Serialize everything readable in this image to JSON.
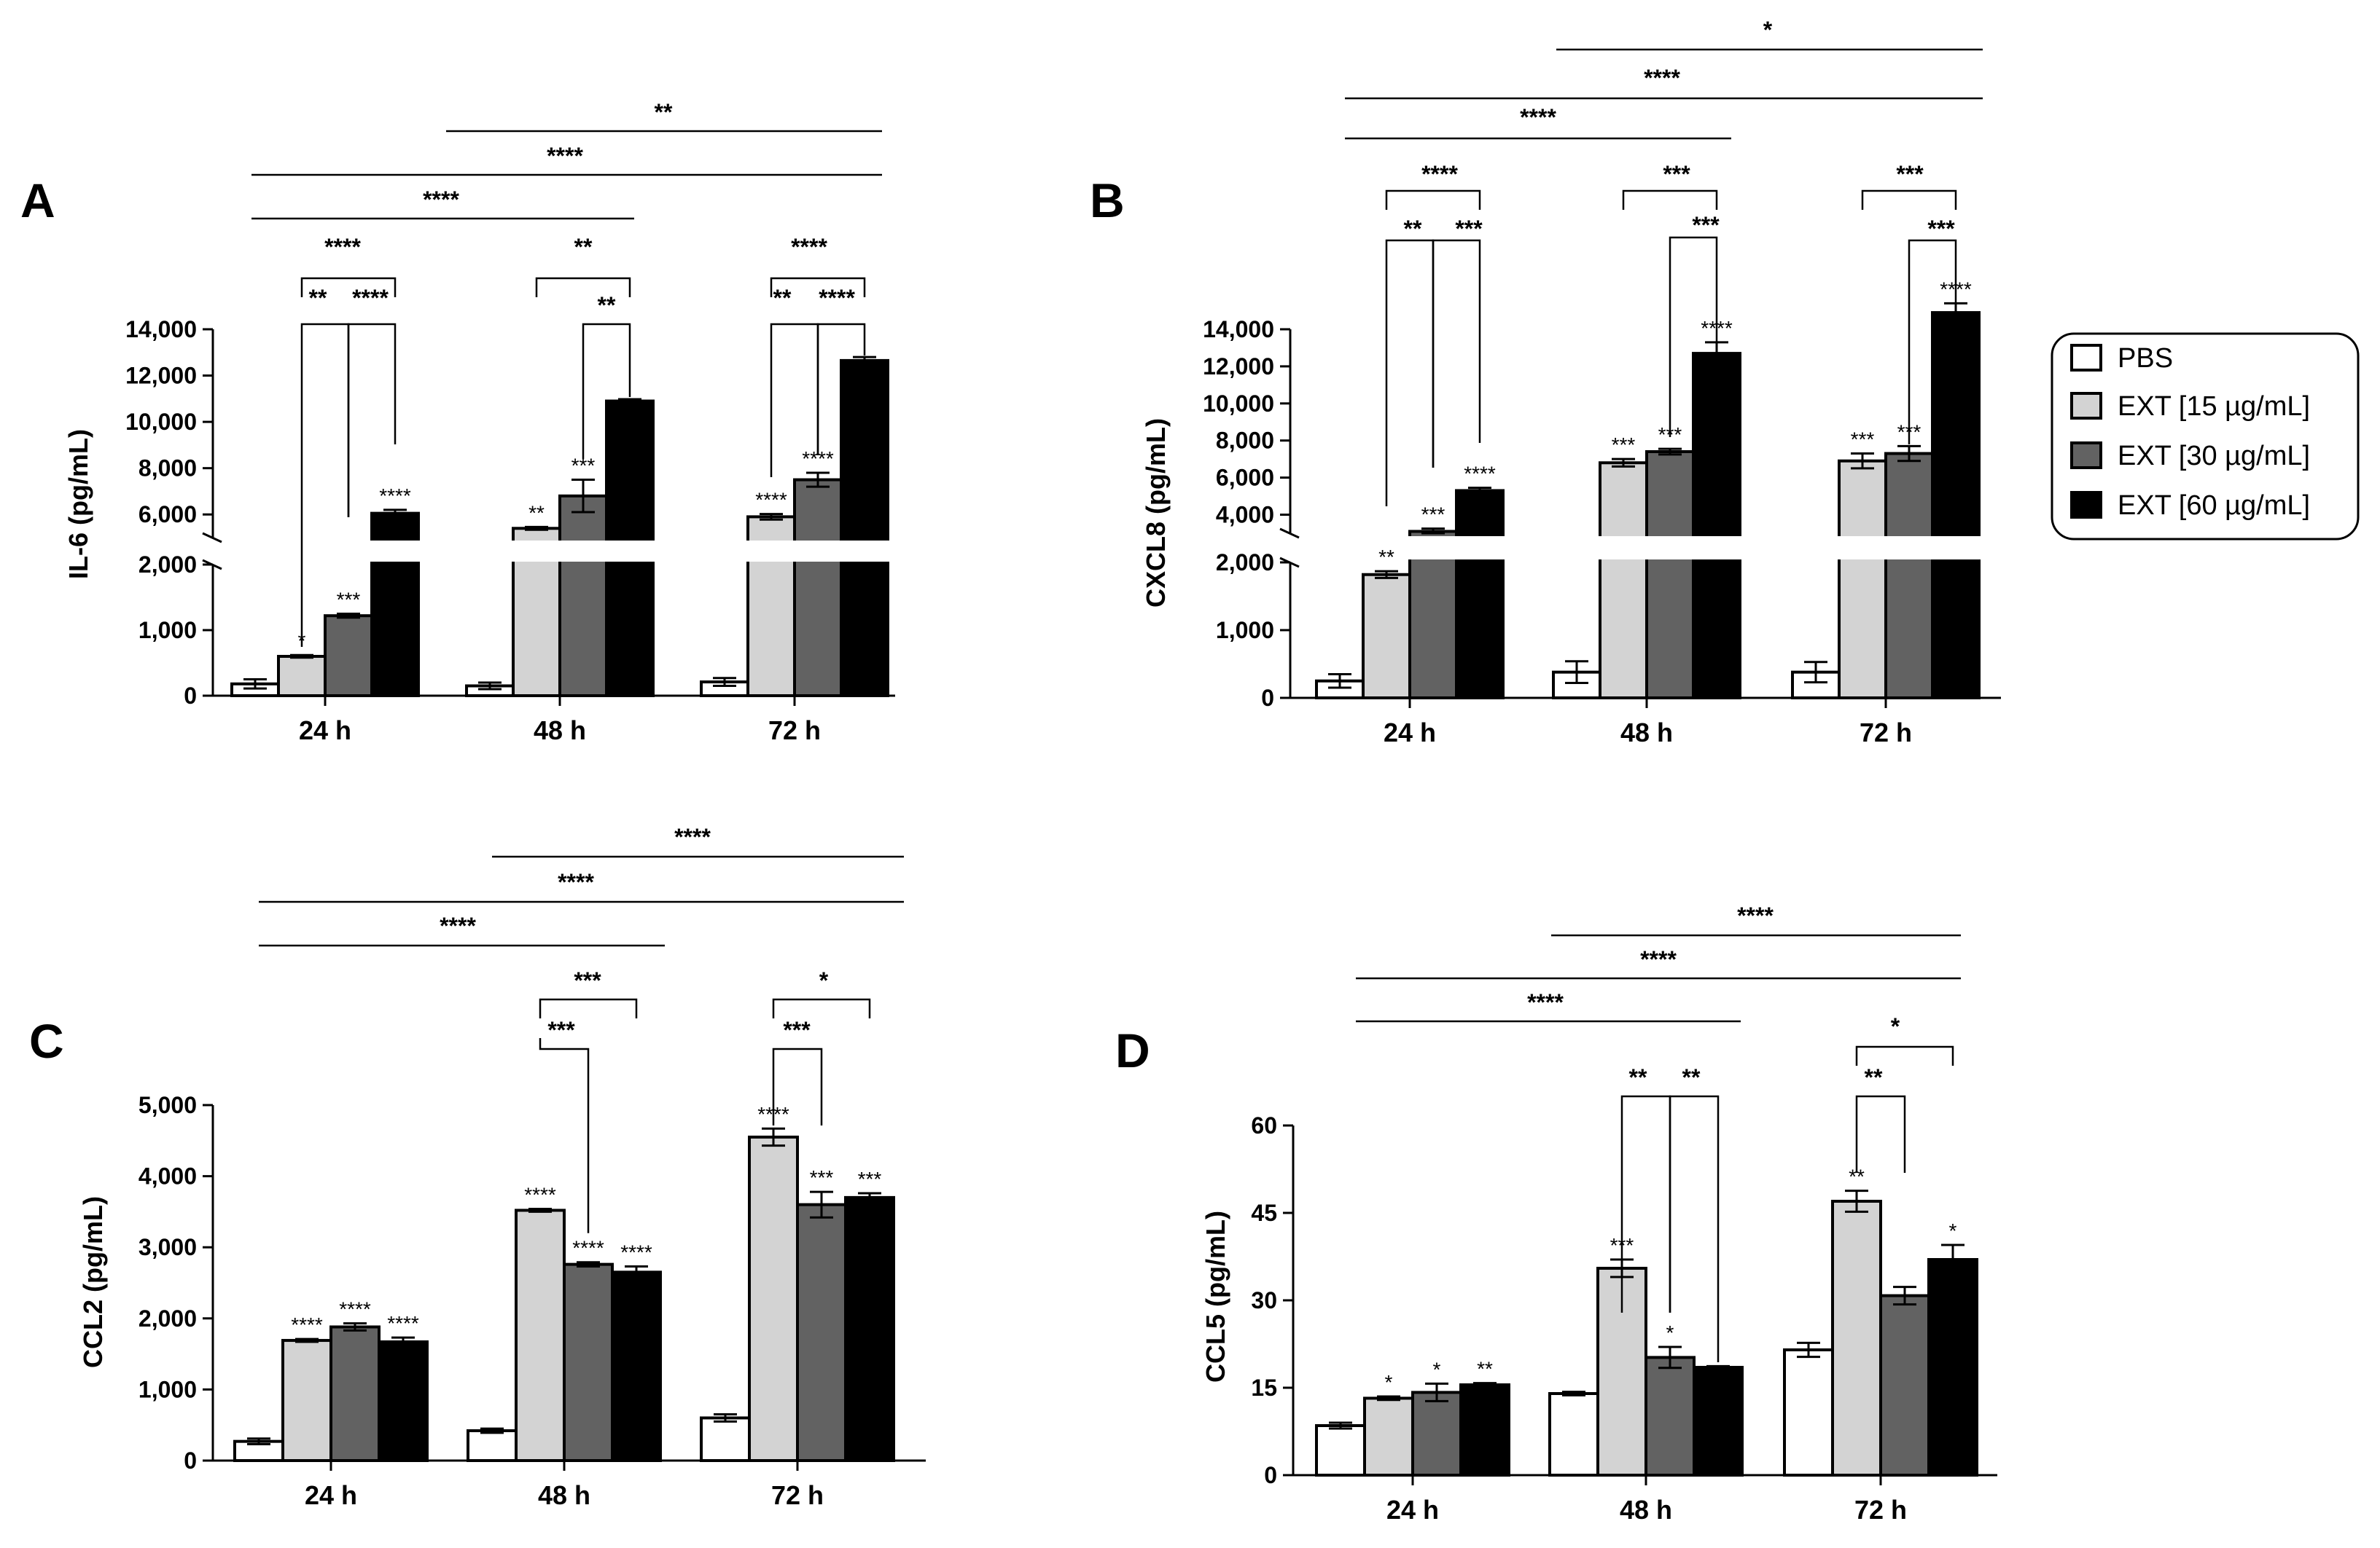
{
  "legend": {
    "items": [
      {
        "label": "PBS",
        "color": "#ffffff"
      },
      {
        "label": "EXT [15 µg/mL]",
        "color": "#d3d3d3"
      },
      {
        "label": "EXT [30 µg/mL]",
        "color": "#626262"
      },
      {
        "label": "EXT [60 µg/mL]",
        "color": "#000000"
      }
    ]
  },
  "chart_data": [
    {
      "panel": "A",
      "type": "bar",
      "ylabel": "IL-6 (pg/mL)",
      "categories": [
        "24 h",
        "48 h",
        "72 h"
      ],
      "axis_break": {
        "lower": [
          0,
          2000
        ],
        "upper": [
          5000,
          14000
        ]
      },
      "yticks_lower": [
        "0",
        "1,000",
        "2,000"
      ],
      "yticks_upper": [
        "6,000",
        "8,000",
        "10,000",
        "12,000",
        "14,000"
      ],
      "series": [
        {
          "name": "PBS",
          "values": [
            180,
            150,
            210
          ],
          "errors": [
            70,
            50,
            60
          ],
          "stars": [
            "",
            "",
            ""
          ]
        },
        {
          "name": "EXT [15 µg/mL]",
          "values": [
            600,
            5400,
            5900
          ],
          "errors": [
            20,
            60,
            120
          ],
          "stars": [
            "*",
            "**",
            "****"
          ]
        },
        {
          "name": "EXT [30 µg/mL]",
          "values": [
            1220,
            6800,
            7500
          ],
          "errors": [
            30,
            700,
            300
          ],
          "stars": [
            "***",
            "***",
            "****"
          ]
        },
        {
          "name": "EXT [60 µg/mL]",
          "values": [
            6050,
            10900,
            12650
          ],
          "errors": [
            150,
            80,
            150
          ],
          "stars": [
            "****",
            "",
            ""
          ]
        }
      ],
      "comparisons": {
        "local": [
          "**",
          "****",
          "****",
          "**",
          "**",
          "**",
          "****",
          "****"
        ],
        "global": [
          "****",
          "****",
          "**"
        ]
      }
    },
    {
      "panel": "B",
      "type": "bar",
      "ylabel": "CXCL8 (pg/mL)",
      "categories": [
        "24 h",
        "48 h",
        "72 h"
      ],
      "axis_break": {
        "lower": [
          0,
          2000
        ],
        "upper": [
          3000,
          14000
        ]
      },
      "yticks_lower": [
        "0",
        "1,000",
        "2,000"
      ],
      "yticks_upper": [
        "4,000",
        "6,000",
        "8,000",
        "10,000",
        "12,000",
        "14,000"
      ],
      "series": [
        {
          "name": "PBS",
          "values": [
            250,
            380,
            380
          ],
          "errors": [
            100,
            160,
            150
          ],
          "stars": [
            "",
            "",
            ""
          ]
        },
        {
          "name": "EXT [15 µg/mL]",
          "values": [
            1820,
            6800,
            6900
          ],
          "errors": [
            50,
            200,
            400
          ],
          "stars": [
            "**",
            "***",
            "***"
          ]
        },
        {
          "name": "EXT [30 µg/mL]",
          "values": [
            3100,
            7400,
            7300
          ],
          "errors": [
            150,
            150,
            400
          ],
          "stars": [
            "***",
            "***",
            "***"
          ]
        },
        {
          "name": "EXT [60 µg/mL]",
          "values": [
            5300,
            12700,
            14900
          ],
          "errors": [
            150,
            600,
            500
          ],
          "stars": [
            "****",
            "****",
            "****"
          ]
        }
      ],
      "comparisons": {
        "local": [
          "**",
          "***",
          "****",
          "***",
          "***",
          "***",
          "***"
        ],
        "global": [
          "****",
          "****",
          "*"
        ]
      }
    },
    {
      "panel": "C",
      "type": "bar",
      "ylabel": "CCL2 (pg/mL)",
      "categories": [
        "24 h",
        "48 h",
        "72 h"
      ],
      "ylim": [
        0,
        5000
      ],
      "yticks": [
        "0",
        "1,000",
        "2,000",
        "3,000",
        "4,000",
        "5,000"
      ],
      "series": [
        {
          "name": "PBS",
          "values": [
            270,
            420,
            600
          ],
          "errors": [
            40,
            30,
            50
          ],
          "stars": [
            "",
            "",
            ""
          ]
        },
        {
          "name": "EXT [15 µg/mL]",
          "values": [
            1690,
            3520,
            4550
          ],
          "errors": [
            20,
            20,
            120
          ],
          "stars": [
            "****",
            "****",
            "****"
          ]
        },
        {
          "name": "EXT [30 µg/mL]",
          "values": [
            1880,
            2760,
            3600
          ],
          "errors": [
            50,
            30,
            180
          ],
          "stars": [
            "****",
            "****",
            "***"
          ]
        },
        {
          "name": "EXT [60 µg/mL]",
          "values": [
            1670,
            2650,
            3700
          ],
          "errors": [
            60,
            80,
            60
          ],
          "stars": [
            "****",
            "****",
            "***"
          ]
        }
      ],
      "comparisons": {
        "local": [
          "***",
          "***",
          "***",
          "*"
        ],
        "global": [
          "****",
          "****",
          "****"
        ]
      }
    },
    {
      "panel": "D",
      "type": "bar",
      "ylabel": "CCL5 (pg/mL)",
      "categories": [
        "24 h",
        "48 h",
        "72 h"
      ],
      "ylim": [
        0,
        60
      ],
      "yticks": [
        "0",
        "15",
        "30",
        "45",
        "60"
      ],
      "series": [
        {
          "name": "PBS",
          "values": [
            8.5,
            14,
            21.5
          ],
          "errors": [
            0.5,
            0.3,
            1.2
          ],
          "stars": [
            "",
            "",
            ""
          ]
        },
        {
          "name": "EXT [15 µg/mL]",
          "values": [
            13.2,
            35.5,
            47
          ],
          "errors": [
            0.3,
            1.5,
            1.8
          ],
          "stars": [
            "*",
            "***",
            "**"
          ]
        },
        {
          "name": "EXT [30 µg/mL]",
          "values": [
            14.2,
            20.2,
            30.8
          ],
          "errors": [
            1.5,
            1.8,
            1.5
          ],
          "stars": [
            "*",
            "*",
            ""
          ]
        },
        {
          "name": "EXT [60 µg/mL]",
          "values": [
            15.5,
            18.5,
            37
          ],
          "errors": [
            0.3,
            0.2,
            2.5
          ],
          "stars": [
            "**",
            "",
            "*"
          ]
        }
      ],
      "comparisons": {
        "local": [
          "**",
          "**",
          "**",
          "*"
        ],
        "global": [
          "****",
          "****",
          "****"
        ]
      }
    }
  ]
}
